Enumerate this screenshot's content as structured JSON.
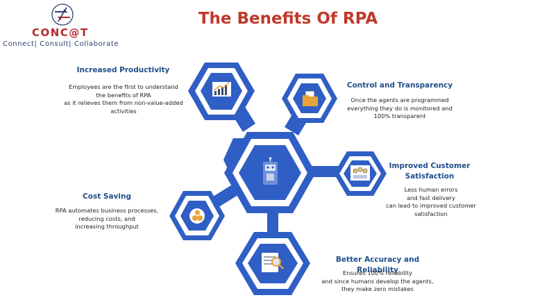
{
  "logo": {
    "name": "CONC@T",
    "tagline": "Connect| Consult| Collaborate"
  },
  "title": "The Benefits Of RPA",
  "colors": {
    "hex_fill": "#2f5fc4",
    "hex_ring": "#ffffff",
    "title": "#c0392b",
    "heading": "#1f4e8c",
    "logo_red": "#b5292c",
    "logo_navy": "#2b3d6b"
  },
  "benefits": [
    {
      "heading": "Increased Productivity",
      "description": "Employees are the first to understand\nthe benefits of RPA\nas it relieves them from non-value-added\nactivities",
      "icon": "growth-chart-icon"
    },
    {
      "heading": "Control and Transparency",
      "description": "Once the agents are programmed\neverything they do is monitored and\n100% transparent",
      "icon": "folder-documents-icon"
    },
    {
      "heading": "Improved Customer\nSatisfaction",
      "description": "Less human errors\nand fast delivery\ncan lead to improved customer\nsatisfaction",
      "icon": "customer-feedback-icon"
    },
    {
      "heading": "Cost Saving",
      "description": "RPA automates business processes,\nreducing costs, and\nincreasing throughput",
      "icon": "coins-icon"
    },
    {
      "heading": "Better Accuracy and Reliability",
      "description": "Ensures 100% reliability\nand since humans develop the agents,\nthey make zero mistakes",
      "icon": "document-magnifier-icon"
    }
  ],
  "center_icon": "robot-icon"
}
